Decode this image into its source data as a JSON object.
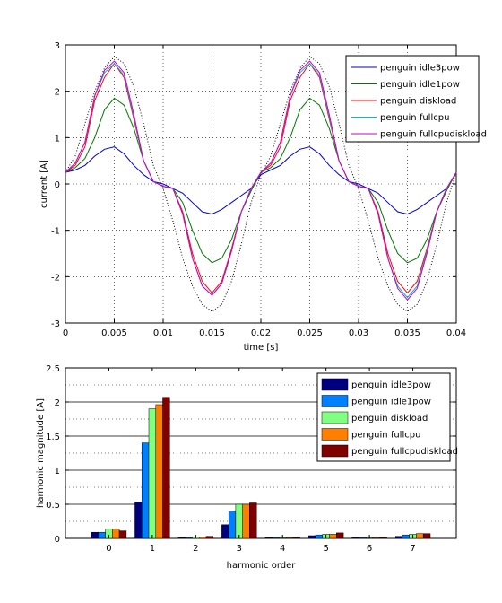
{
  "chart_data": [
    {
      "type": "line",
      "xlabel": "time [s]",
      "ylabel": "current [A]",
      "xlim": [
        0,
        0.04
      ],
      "ylim": [
        -3,
        3
      ],
      "x_ticks": [
        0,
        0.005,
        0.01,
        0.015,
        0.02,
        0.025,
        0.03,
        0.035,
        0.04
      ],
      "x_tick_labels": [
        "0",
        "0.005",
        "0.01",
        "0.015",
        "0.02",
        "0.025",
        "0.03",
        "0.035",
        "0.04"
      ],
      "y_ticks": [
        -3,
        -2,
        -1,
        0,
        1,
        2,
        3
      ],
      "y_tick_labels": [
        "-3",
        "-2",
        "-1",
        "0",
        "1",
        "2",
        "3"
      ],
      "grid": true,
      "legend_position": "top-right",
      "reference_curve": {
        "style": "dotted",
        "color": "#000000",
        "amplitude": 2.75,
        "x": [
          0,
          0.001,
          0.002,
          0.003,
          0.004,
          0.005,
          0.006,
          0.007,
          0.008,
          0.009,
          0.01,
          0.011,
          0.012,
          0.013,
          0.014,
          0.015,
          0.016,
          0.017,
          0.018,
          0.019,
          0.02,
          0.021,
          0.022,
          0.023,
          0.024,
          0.025,
          0.026,
          0.027,
          0.028,
          0.029,
          0.03,
          0.031,
          0.032,
          0.033,
          0.034,
          0.035,
          0.036,
          0.037,
          0.038,
          0.039,
          0.04
        ],
        "y": [
          0.25,
          0.6,
          1.3,
          2.0,
          2.5,
          2.75,
          2.6,
          2.1,
          1.3,
          0.4,
          -0.1,
          -0.8,
          -1.6,
          -2.2,
          -2.6,
          -2.75,
          -2.6,
          -2.1,
          -1.3,
          -0.4,
          0.2,
          0.6,
          1.3,
          2.0,
          2.5,
          2.75,
          2.6,
          2.1,
          1.3,
          0.4,
          -0.1,
          -0.8,
          -1.6,
          -2.2,
          -2.6,
          -2.75,
          -2.6,
          -2.1,
          -1.3,
          -0.4,
          0.25
        ]
      },
      "x": [
        0,
        0.001,
        0.002,
        0.003,
        0.004,
        0.005,
        0.006,
        0.007,
        0.008,
        0.009,
        0.01,
        0.011,
        0.012,
        0.013,
        0.014,
        0.015,
        0.016,
        0.017,
        0.018,
        0.019,
        0.02,
        0.021,
        0.022,
        0.023,
        0.024,
        0.025,
        0.026,
        0.027,
        0.028,
        0.029,
        0.03,
        0.031,
        0.032,
        0.033,
        0.034,
        0.035,
        0.036,
        0.037,
        0.038,
        0.039,
        0.04
      ],
      "series": [
        {
          "name": "penguin idle3pow",
          "color": "#0000cc",
          "values": [
            0.25,
            0.3,
            0.4,
            0.6,
            0.75,
            0.8,
            0.65,
            0.4,
            0.2,
            0.05,
            0.0,
            -0.1,
            -0.2,
            -0.4,
            -0.6,
            -0.65,
            -0.55,
            -0.4,
            -0.25,
            -0.1,
            0.2,
            0.3,
            0.4,
            0.6,
            0.75,
            0.8,
            0.65,
            0.4,
            0.2,
            0.05,
            0.0,
            -0.1,
            -0.2,
            -0.4,
            -0.6,
            -0.65,
            -0.55,
            -0.4,
            -0.25,
            -0.1,
            0.25
          ]
        },
        {
          "name": "penguin idle1pow",
          "color": "#007700",
          "values": [
            0.25,
            0.35,
            0.55,
            1.0,
            1.6,
            1.85,
            1.7,
            1.2,
            0.5,
            0.05,
            -0.05,
            -0.1,
            -0.4,
            -1.0,
            -1.5,
            -1.7,
            -1.6,
            -1.2,
            -0.6,
            -0.15,
            0.25,
            0.35,
            0.55,
            1.0,
            1.6,
            1.85,
            1.7,
            1.2,
            0.5,
            0.05,
            -0.05,
            -0.1,
            -0.4,
            -1.0,
            -1.5,
            -1.7,
            -1.6,
            -1.2,
            -0.6,
            -0.15,
            0.25
          ]
        },
        {
          "name": "penguin diskload",
          "color": "#ff0000",
          "values": [
            0.25,
            0.4,
            0.8,
            1.8,
            2.3,
            2.6,
            2.3,
            1.4,
            0.5,
            0.05,
            -0.05,
            -0.1,
            -0.6,
            -1.5,
            -2.1,
            -2.35,
            -2.1,
            -1.4,
            -0.6,
            -0.1,
            0.25,
            0.4,
            0.8,
            1.8,
            2.3,
            2.6,
            2.3,
            1.4,
            0.5,
            0.05,
            -0.05,
            -0.1,
            -0.6,
            -1.5,
            -2.1,
            -2.35,
            -2.1,
            -1.4,
            -0.6,
            -0.1,
            0.25
          ]
        },
        {
          "name": "penguin fullcpu",
          "color": "#00bbcc",
          "values": [
            0.25,
            0.45,
            0.9,
            1.9,
            2.4,
            2.6,
            2.35,
            1.45,
            0.5,
            0.05,
            -0.05,
            -0.1,
            -0.65,
            -1.6,
            -2.2,
            -2.4,
            -2.15,
            -1.45,
            -0.6,
            -0.1,
            0.25,
            0.45,
            0.9,
            1.9,
            2.4,
            2.6,
            2.35,
            1.45,
            0.5,
            0.05,
            -0.05,
            -0.1,
            -0.65,
            -1.6,
            -2.2,
            -2.45,
            -2.2,
            -1.45,
            -0.6,
            -0.1,
            0.25
          ]
        },
        {
          "name": "penguin fullcpudiskload",
          "color": "#cc00cc",
          "values": [
            0.25,
            0.45,
            0.9,
            1.9,
            2.45,
            2.65,
            2.4,
            1.5,
            0.5,
            0.05,
            -0.05,
            -0.1,
            -0.65,
            -1.6,
            -2.2,
            -2.4,
            -2.15,
            -1.45,
            -0.6,
            -0.1,
            0.25,
            0.45,
            0.9,
            1.9,
            2.45,
            2.65,
            2.4,
            1.5,
            0.5,
            0.05,
            -0.05,
            -0.1,
            -0.65,
            -1.6,
            -2.25,
            -2.5,
            -2.25,
            -1.5,
            -0.6,
            -0.1,
            0.25
          ]
        }
      ]
    },
    {
      "type": "bar",
      "xlabel": "harmonic order",
      "ylabel": "harmonic magnitude [A]",
      "ylim": [
        0,
        2.5
      ],
      "y_ticks": [
        0,
        0.5,
        1,
        1.5,
        2,
        2.5
      ],
      "y_tick_labels": [
        "0",
        "0.5",
        "1",
        "1.5",
        "2",
        "2.5"
      ],
      "grid": true,
      "legend_position": "top-right",
      "categories": [
        "0",
        "1",
        "2",
        "3",
        "4",
        "5",
        "6",
        "7"
      ],
      "series": [
        {
          "name": "penguin idle3pow",
          "color": "#00007f",
          "values": [
            0.09,
            0.53,
            0.01,
            0.2,
            0.01,
            0.04,
            0.01,
            0.03
          ]
        },
        {
          "name": "penguin idle1pow",
          "color": "#0080ff",
          "values": [
            0.09,
            1.4,
            0.01,
            0.4,
            0.01,
            0.05,
            0.01,
            0.05
          ]
        },
        {
          "name": "penguin diskload",
          "color": "#80ff80",
          "values": [
            0.14,
            1.9,
            0.02,
            0.5,
            0.01,
            0.06,
            0.01,
            0.06
          ]
        },
        {
          "name": "penguin fullcpu",
          "color": "#ff8000",
          "values": [
            0.14,
            1.96,
            0.02,
            0.5,
            0.01,
            0.06,
            0.01,
            0.07
          ]
        },
        {
          "name": "penguin fullcpudiskload",
          "color": "#800000",
          "values": [
            0.11,
            2.07,
            0.03,
            0.52,
            0.01,
            0.08,
            0.01,
            0.07
          ]
        }
      ]
    }
  ]
}
